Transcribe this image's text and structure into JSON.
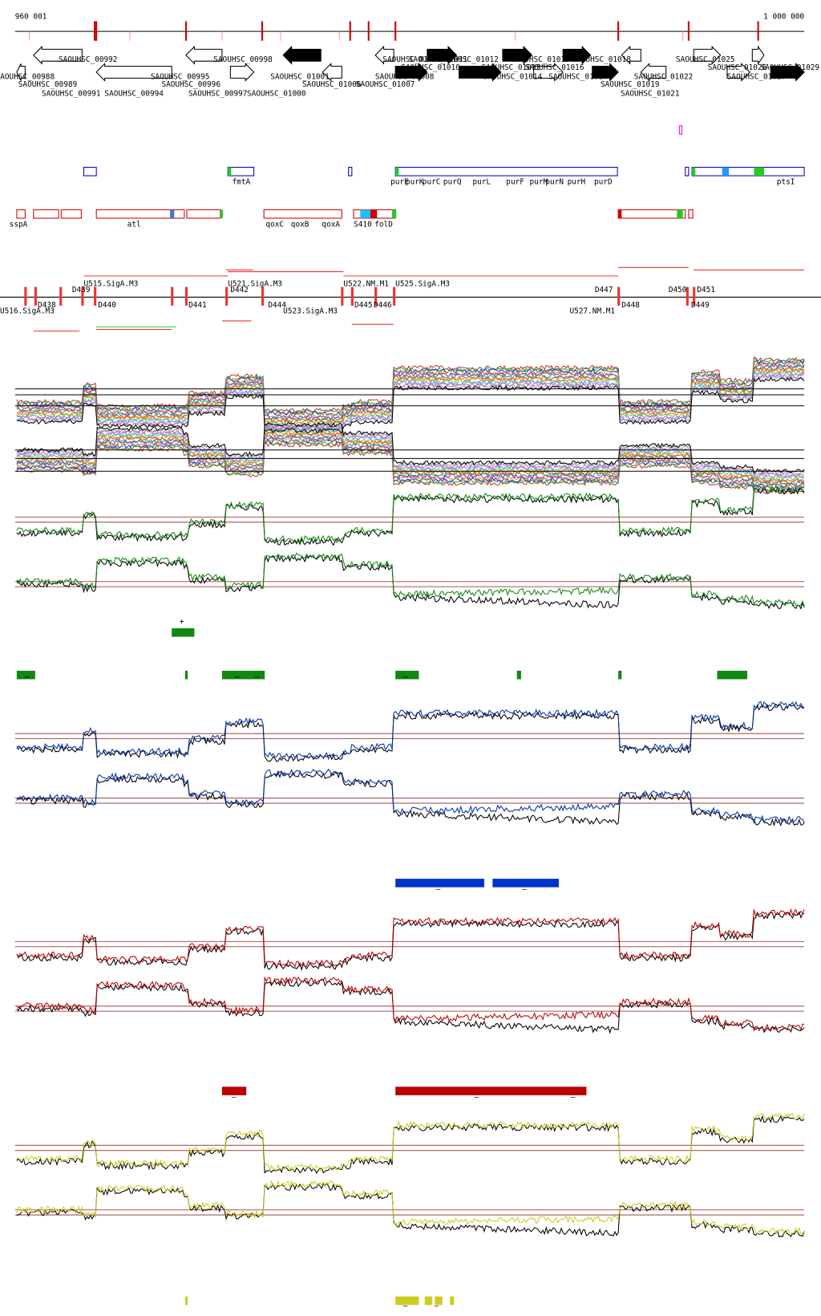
{
  "ruler": {
    "start": "960 001",
    "end": "1 000 000"
  },
  "genes": [
    "SAOUHSC_00988",
    "SAOUHSC_00989",
    "SAOUHSC_00991",
    "SAOUHSC_00992",
    "SAOUHSC_00994",
    "SAOUHSC_00995",
    "SAOUHSC_00996",
    "SAOUHSC_00997",
    "SAOUHSC_00998",
    "SAOUHSC_01000",
    "SAOUHSC_01001",
    "SAOUHSC_01006",
    "SAOUHSC_01007",
    "SAOUHSC_01008",
    "SAOUHSC_01009",
    "SAOUHSC_01010",
    "SAOUHSC_01011",
    "SAOUHSC_01012",
    "SAOUHSC_01013",
    "SAOUHSC_01014",
    "SAOUHSC_01015",
    "SAOUHSC_01016",
    "SAOUHSC_01017",
    "SAOUHSC_01018",
    "SAOUHSC_01019",
    "SAOUHSC_01021",
    "SAOUHSC_01022",
    "SAOUHSC_01025",
    "SAOUHSC_01026",
    "SAOUHSC_01027",
    "SAOUHSC_01029"
  ],
  "features_blue": [
    "fmtA",
    "purE",
    "purK",
    "purC",
    "purQ",
    "purL",
    "purF",
    "purM",
    "purN",
    "purH",
    "purD",
    "ptsI"
  ],
  "features_red": [
    "sspA",
    "atl",
    "qoxC",
    "qoxB",
    "qoxA",
    "S410",
    "folD"
  ],
  "segments": [
    "U515.SigA.M3",
    "U521.SigA.M3",
    "U522.NM.M1",
    "U525.SigA.M3",
    "D439",
    "D442",
    "D447",
    "D450",
    "D451",
    "D438",
    "D440",
    "D441",
    "D444",
    "D445",
    "D446",
    "D448",
    "D449",
    "U523.SigA.M3",
    "U527.NM.M1",
    "U516.SigA.M3"
  ],
  "signs": [
    "+",
    "–",
    "–",
    "–",
    "–",
    "–",
    "–",
    "–",
    "–",
    "–",
    "–",
    "–"
  ]
}
